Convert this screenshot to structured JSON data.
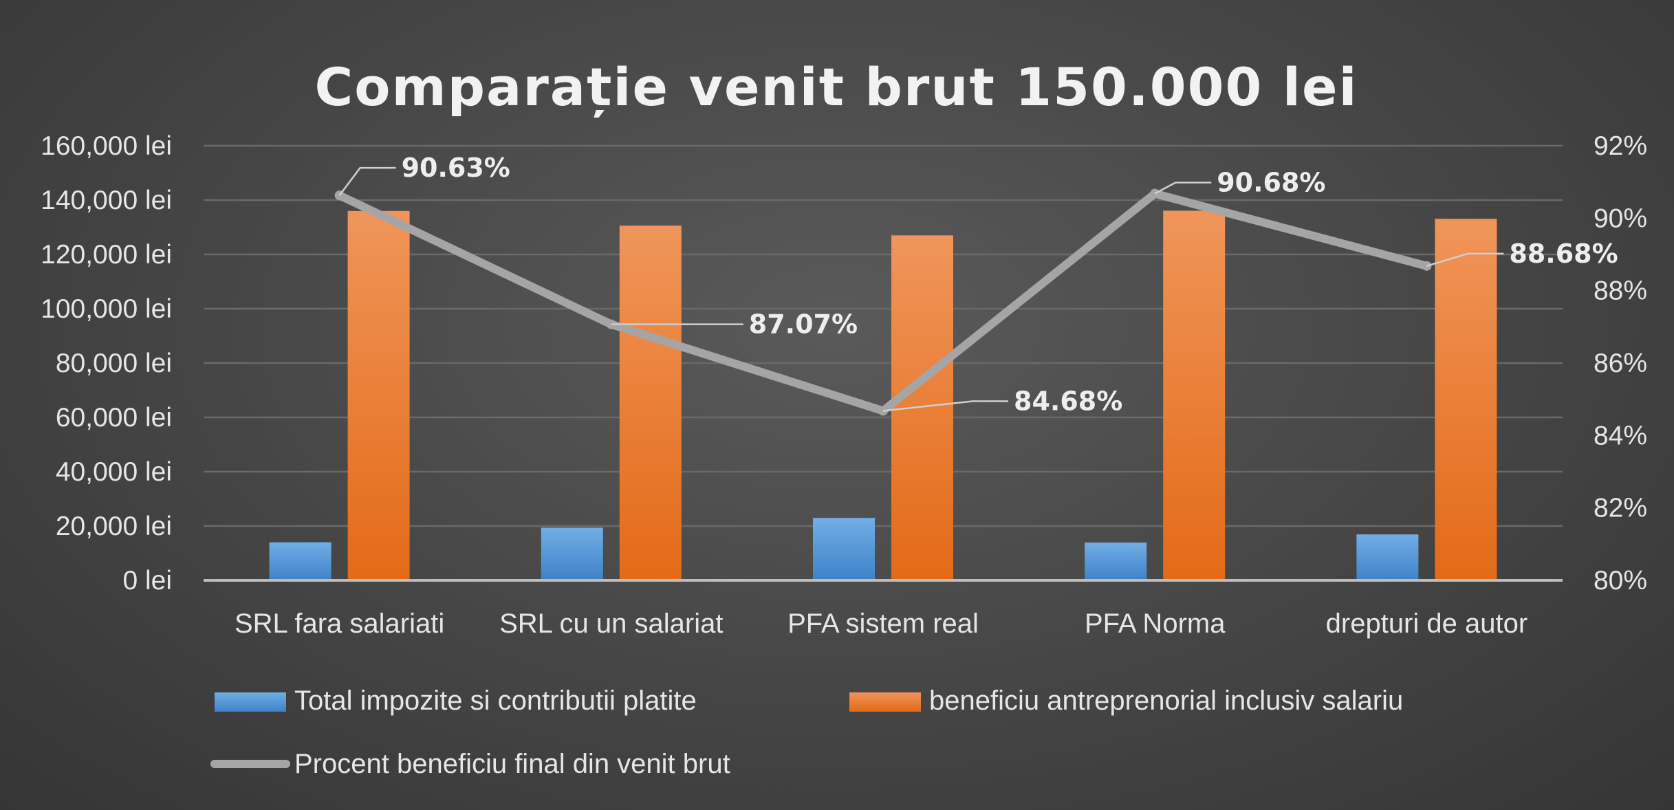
{
  "chart_data": {
    "type": "bar",
    "title": "Comparație venit brut 150.000 lei",
    "categories": [
      "SRL fara salariati",
      "SRL cu un salariat",
      "PFA sistem real",
      "PFA Norma",
      "drepturi de autor"
    ],
    "series": [
      {
        "name": "Total impozite si contributii platite",
        "type": "bar",
        "axis": "left",
        "color": "#5b9bd5",
        "values": [
          14000,
          19400,
          23000,
          13900,
          16900
        ]
      },
      {
        "name": "beneficiu antreprenorial inclusiv salariu",
        "type": "bar",
        "axis": "left",
        "color": "#ed7d31",
        "values": [
          136000,
          130600,
          127000,
          136100,
          133100
        ]
      },
      {
        "name": "Procent beneficiu final din venit brut",
        "type": "line",
        "axis": "right",
        "color": "#a5a5a5",
        "values": [
          90.63,
          87.07,
          84.68,
          90.68,
          88.68
        ],
        "data_labels": [
          "90.63%",
          "87.07%",
          "84.68%",
          "90.68%",
          "88.68%"
        ]
      }
    ],
    "y_left": {
      "min": 0,
      "max": 160000,
      "step": 20000,
      "tick_labels": [
        "0 lei",
        "20,000 lei",
        "40,000 lei",
        "60,000 lei",
        "80,000 lei",
        "100,000 lei",
        "120,000 lei",
        "140,000 lei",
        "160,000 lei"
      ]
    },
    "y_right": {
      "min": 80,
      "max": 92,
      "step": 2,
      "tick_labels": [
        "80%",
        "82%",
        "84%",
        "86%",
        "88%",
        "90%",
        "92%"
      ]
    },
    "grid": true,
    "legend_position": "bottom"
  }
}
